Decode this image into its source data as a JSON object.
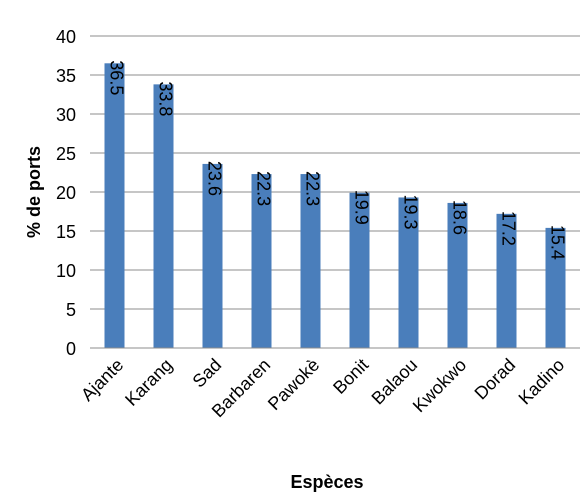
{
  "chart_data": {
    "type": "bar",
    "categories": [
      "Ajante",
      "Karang",
      "Sad",
      "Barbaren",
      "Pawokè",
      "Bonit",
      "Balaou",
      "Kwokwo",
      "Dorad",
      "Kadino"
    ],
    "values": [
      36.5,
      33.8,
      23.6,
      22.3,
      22.3,
      19.9,
      19.3,
      18.6,
      17.2,
      15.4
    ],
    "data_labels": [
      "36.5",
      "33.8",
      "23.6",
      "22.3",
      "22.3",
      "19.9",
      "19.3",
      "18.6",
      "17.2",
      "15.4"
    ],
    "title": "",
    "xlabel": "Espèces",
    "ylabel": "% de ports",
    "ylim": [
      0,
      40
    ],
    "yticks": [
      0,
      5,
      10,
      15,
      20,
      25,
      30,
      35,
      40
    ],
    "grid": true,
    "legend": "none",
    "bar_color": "#4a7ebb"
  }
}
